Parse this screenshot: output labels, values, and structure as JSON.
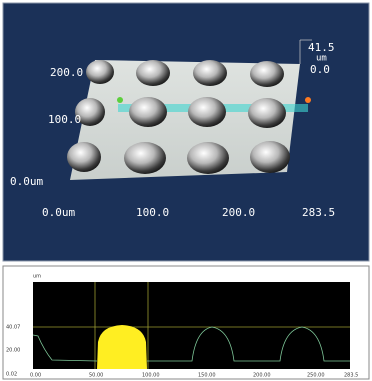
{
  "surface_view": {
    "z_max": "41.5",
    "z_unit": "um",
    "z_min": "0.0",
    "y_labels": [
      "200.0",
      "100.0",
      "0.0um"
    ],
    "x_labels": [
      "0.0um",
      "100.0",
      "200.0",
      "283.5"
    ]
  },
  "profile_view": {
    "unit": "um",
    "y_labels": [
      "40.07",
      "20.00",
      "0.02"
    ],
    "x_labels": [
      "0.00",
      "50.00",
      "100.00",
      "150.00",
      "200.00",
      "250.00",
      "283.5"
    ]
  }
}
